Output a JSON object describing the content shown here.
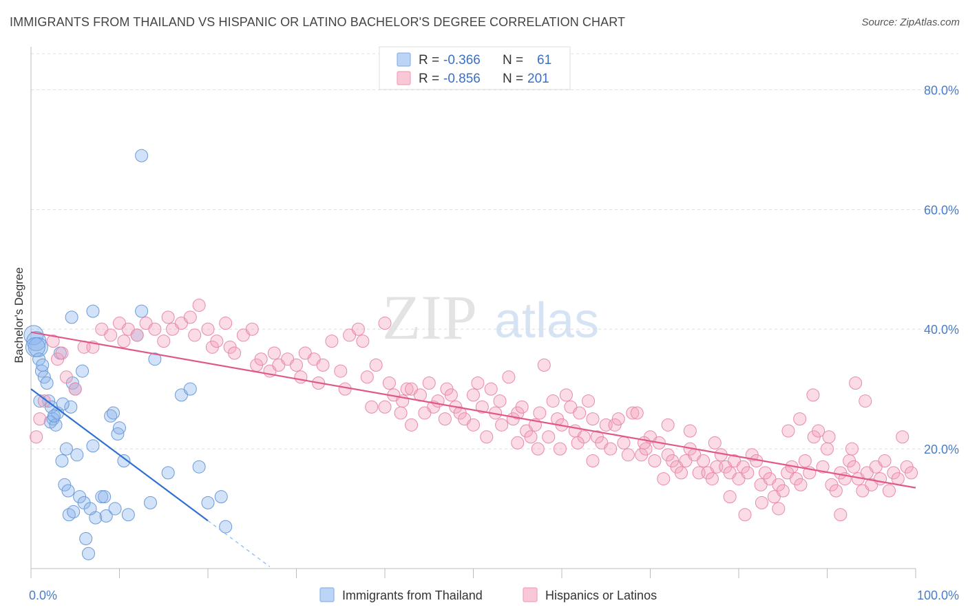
{
  "title": "IMMIGRANTS FROM THAILAND VS HISPANIC OR LATINO BACHELOR'S DEGREE CORRELATION CHART",
  "source": "Source: ZipAtlas.com",
  "watermark": {
    "zip": "ZIP",
    "atlas": "atlas"
  },
  "legend": {
    "r_label": "R =",
    "n_label": "N =",
    "rows": [
      {
        "r": "-0.366",
        "n": "61",
        "color": "#8ab4ec"
      },
      {
        "r": "-0.856",
        "n": "201",
        "color": "#f4a0bb"
      }
    ]
  },
  "bottom_legend": [
    "Immigrants from Thailand",
    "Hispanics or Latinos"
  ],
  "chart_data": {
    "type": "scatter",
    "xlabel": "",
    "ylabel": "Bachelor's Degree",
    "xlim": [
      0,
      100
    ],
    "ylim": [
      0,
      85
    ],
    "x_tick_labels": [
      "0.0%",
      "100.0%"
    ],
    "y_ticks": [
      20,
      40,
      60,
      80
    ],
    "y_tick_labels": [
      "20.0%",
      "40.0%",
      "60.0%",
      "80.0%"
    ],
    "grid": "horizontal dashed",
    "legend_position": "top-center",
    "series": [
      {
        "name": "Immigrants from Thailand",
        "color": "#8ab4ec",
        "stroke": "#6b9ad8",
        "trend": {
          "x": [
            0,
            20
          ],
          "y": [
            30.0,
            8.0
          ],
          "dashed_to_x": 27,
          "color": "#2f6fd1"
        },
        "points": [
          [
            0.3,
            39
          ],
          [
            0.6,
            38
          ],
          [
            0.8,
            37
          ],
          [
            0.5,
            37
          ],
          [
            0.9,
            35
          ],
          [
            1.2,
            33
          ],
          [
            1.5,
            32
          ],
          [
            1.8,
            31
          ],
          [
            2.0,
            28
          ],
          [
            2.3,
            27
          ],
          [
            1.0,
            28
          ],
          [
            2.5,
            25
          ],
          [
            2.2,
            24.5
          ],
          [
            2.8,
            24
          ],
          [
            3.0,
            26
          ],
          [
            2.6,
            25.5
          ],
          [
            3.3,
            36
          ],
          [
            3.5,
            18
          ],
          [
            3.8,
            14
          ],
          [
            4.0,
            20
          ],
          [
            4.2,
            13
          ],
          [
            4.5,
            27
          ],
          [
            4.7,
            31
          ],
          [
            5.0,
            30
          ],
          [
            4.3,
            9
          ],
          [
            4.8,
            9.5
          ],
          [
            5.2,
            19
          ],
          [
            5.5,
            12
          ],
          [
            5.8,
            33
          ],
          [
            6.0,
            11
          ],
          [
            4.6,
            42
          ],
          [
            7.0,
            43
          ],
          [
            6.2,
            5
          ],
          [
            7.3,
            8.5
          ],
          [
            7.0,
            20.5
          ],
          [
            8.0,
            12
          ],
          [
            8.5,
            8.8
          ],
          [
            9.0,
            25.5
          ],
          [
            9.5,
            10
          ],
          [
            9.8,
            22.5
          ],
          [
            10.0,
            23.5
          ],
          [
            10.5,
            18
          ],
          [
            11.0,
            9
          ],
          [
            12.0,
            39
          ],
          [
            6.5,
            2.5
          ],
          [
            12.5,
            43
          ],
          [
            13.5,
            11
          ],
          [
            14.0,
            35
          ],
          [
            15.5,
            16
          ],
          [
            17.0,
            29
          ],
          [
            18.0,
            30
          ],
          [
            19.0,
            17
          ],
          [
            20.0,
            11
          ],
          [
            21.5,
            12
          ],
          [
            22.0,
            7
          ],
          [
            12.5,
            69
          ],
          [
            9.3,
            26
          ],
          [
            6.7,
            10
          ],
          [
            8.3,
            12
          ],
          [
            3.6,
            27.5
          ],
          [
            1.3,
            34
          ]
        ]
      },
      {
        "name": "Hispanics or Latinos",
        "color": "#f4a0bb",
        "stroke": "#e88aa8",
        "trend": {
          "x": [
            0,
            100
          ],
          "y": [
            39.5,
            13.5
          ],
          "color": "#e0578a"
        },
        "points": [
          [
            0.6,
            22
          ],
          [
            1.0,
            25
          ],
          [
            1.5,
            28
          ],
          [
            2.5,
            38
          ],
          [
            3.0,
            35
          ],
          [
            3.5,
            36
          ],
          [
            4.0,
            32
          ],
          [
            5.0,
            30
          ],
          [
            6.0,
            37
          ],
          [
            7.0,
            37
          ],
          [
            8.0,
            40
          ],
          [
            9.0,
            39
          ],
          [
            10.0,
            41
          ],
          [
            10.5,
            38
          ],
          [
            11.0,
            40
          ],
          [
            12.0,
            39
          ],
          [
            13.0,
            41
          ],
          [
            14.0,
            40
          ],
          [
            15.0,
            38
          ],
          [
            15.5,
            42
          ],
          [
            16.0,
            40
          ],
          [
            17.0,
            41
          ],
          [
            18.0,
            42
          ],
          [
            18.5,
            39
          ],
          [
            19.0,
            44
          ],
          [
            20.0,
            40
          ],
          [
            20.5,
            37
          ],
          [
            21.0,
            38
          ],
          [
            22.0,
            41
          ],
          [
            22.5,
            37
          ],
          [
            23.0,
            36
          ],
          [
            24.0,
            39
          ],
          [
            25.0,
            40
          ],
          [
            25.5,
            34
          ],
          [
            26.0,
            35
          ],
          [
            27.0,
            33
          ],
          [
            27.5,
            36
          ],
          [
            28.0,
            34
          ],
          [
            29.0,
            35
          ],
          [
            30.0,
            34
          ],
          [
            30.5,
            32
          ],
          [
            31.0,
            36
          ],
          [
            32.0,
            35
          ],
          [
            32.5,
            31
          ],
          [
            33.0,
            34
          ],
          [
            34.0,
            38
          ],
          [
            35.0,
            33
          ],
          [
            35.5,
            30
          ],
          [
            36.0,
            39
          ],
          [
            37.0,
            40
          ],
          [
            37.5,
            38
          ],
          [
            38.0,
            32
          ],
          [
            38.5,
            27
          ],
          [
            39.0,
            34
          ],
          [
            40.0,
            41
          ],
          [
            40.5,
            31
          ],
          [
            41.0,
            29
          ],
          [
            42.0,
            28
          ],
          [
            42.5,
            30
          ],
          [
            43.0,
            30
          ],
          [
            44.0,
            29
          ],
          [
            45.0,
            31
          ],
          [
            45.5,
            27
          ],
          [
            46.0,
            28
          ],
          [
            47.0,
            30
          ],
          [
            47.5,
            29
          ],
          [
            48.0,
            27
          ],
          [
            48.5,
            26
          ],
          [
            49.0,
            25
          ],
          [
            50.0,
            29
          ],
          [
            50.5,
            31
          ],
          [
            51.0,
            27
          ],
          [
            52.0,
            30
          ],
          [
            52.5,
            26
          ],
          [
            53.0,
            28
          ],
          [
            54.0,
            32
          ],
          [
            54.5,
            25
          ],
          [
            55.0,
            26
          ],
          [
            55.5,
            27
          ],
          [
            56.0,
            23
          ],
          [
            56.5,
            22
          ],
          [
            57.0,
            24
          ],
          [
            57.5,
            26
          ],
          [
            58.0,
            34
          ],
          [
            58.5,
            22
          ],
          [
            59.0,
            28
          ],
          [
            59.5,
            25
          ],
          [
            60.0,
            24
          ],
          [
            60.5,
            29
          ],
          [
            61.0,
            27
          ],
          [
            61.5,
            23
          ],
          [
            62.0,
            26
          ],
          [
            62.5,
            22
          ],
          [
            63.0,
            28
          ],
          [
            63.5,
            25
          ],
          [
            64.0,
            22
          ],
          [
            64.5,
            21
          ],
          [
            65.0,
            24
          ],
          [
            65.5,
            20
          ],
          [
            66.0,
            24
          ],
          [
            67.0,
            21
          ],
          [
            67.5,
            19
          ],
          [
            68.0,
            26
          ],
          [
            68.5,
            26
          ],
          [
            69.0,
            19
          ],
          [
            69.5,
            20
          ],
          [
            70.0,
            22
          ],
          [
            70.5,
            18
          ],
          [
            71.0,
            21
          ],
          [
            71.5,
            15
          ],
          [
            72.0,
            19
          ],
          [
            72.5,
            18
          ],
          [
            73.0,
            17
          ],
          [
            73.5,
            16
          ],
          [
            74.0,
            18
          ],
          [
            74.5,
            20
          ],
          [
            75.0,
            19
          ],
          [
            75.5,
            16
          ],
          [
            76.0,
            18
          ],
          [
            76.5,
            16
          ],
          [
            77.0,
            15
          ],
          [
            77.5,
            17
          ],
          [
            78.0,
            19
          ],
          [
            78.5,
            17
          ],
          [
            79.0,
            16
          ],
          [
            79.5,
            18
          ],
          [
            80.0,
            15
          ],
          [
            80.5,
            17
          ],
          [
            81.0,
            16
          ],
          [
            81.5,
            19
          ],
          [
            82.0,
            18
          ],
          [
            82.5,
            14
          ],
          [
            83.0,
            16
          ],
          [
            83.5,
            15
          ],
          [
            84.0,
            12
          ],
          [
            84.5,
            14
          ],
          [
            85.0,
            13
          ],
          [
            85.5,
            16
          ],
          [
            86.0,
            17
          ],
          [
            86.5,
            15
          ],
          [
            87.0,
            14
          ],
          [
            87.5,
            18
          ],
          [
            88.0,
            16
          ],
          [
            88.5,
            22
          ],
          [
            89.0,
            23
          ],
          [
            89.5,
            17
          ],
          [
            90.0,
            20
          ],
          [
            90.5,
            14
          ],
          [
            91.0,
            13
          ],
          [
            91.5,
            16
          ],
          [
            92.0,
            15
          ],
          [
            92.5,
            18
          ],
          [
            93.0,
            17
          ],
          [
            93.5,
            15
          ],
          [
            94.0,
            13
          ],
          [
            94.5,
            16
          ],
          [
            95.0,
            14
          ],
          [
            95.5,
            17
          ],
          [
            96.0,
            15
          ],
          [
            96.5,
            18
          ],
          [
            97.0,
            13
          ],
          [
            97.5,
            16
          ],
          [
            98.0,
            15
          ],
          [
            98.5,
            22
          ],
          [
            99.0,
            17
          ],
          [
            99.5,
            16
          ],
          [
            94.3,
            28
          ],
          [
            93.2,
            31
          ],
          [
            88.4,
            29
          ],
          [
            84.5,
            10
          ],
          [
            82.6,
            11
          ],
          [
            80.7,
            9
          ],
          [
            79.0,
            12
          ],
          [
            90.2,
            22
          ],
          [
            91.5,
            9
          ],
          [
            92.8,
            20
          ],
          [
            66.4,
            25
          ],
          [
            69.3,
            21
          ],
          [
            72.0,
            24
          ],
          [
            74.5,
            23
          ],
          [
            77.3,
            21
          ],
          [
            85.6,
            23
          ],
          [
            86.9,
            25
          ],
          [
            63.5,
            18
          ],
          [
            61.8,
            21
          ],
          [
            59.8,
            20
          ],
          [
            57.3,
            20
          ],
          [
            55.0,
            21
          ],
          [
            53.2,
            24
          ],
          [
            51.5,
            22
          ],
          [
            50.0,
            24
          ],
          [
            46.8,
            25
          ],
          [
            44.5,
            26
          ],
          [
            43.0,
            24
          ],
          [
            41.8,
            26
          ],
          [
            40.0,
            27
          ]
        ]
      }
    ]
  }
}
